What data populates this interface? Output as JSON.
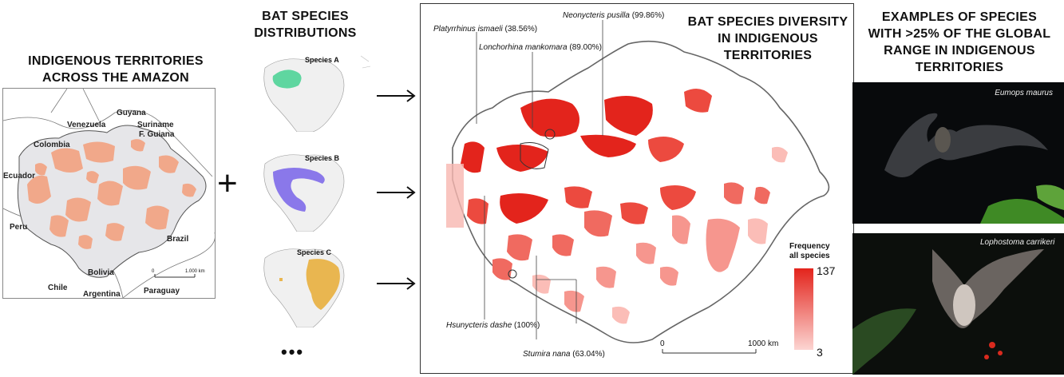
{
  "panel1": {
    "title_line1": "INDIGENOUS TERRITORIES",
    "title_line2": "ACROSS THE AMAZON",
    "countries": {
      "guyana": "Guyana",
      "venezuela": "Venezuela",
      "suriname": "Suriname",
      "f_guiana": "F. Guiana",
      "colombia": "Colombia",
      "ecuador": "Ecuador",
      "peru": "Peru",
      "brazil": "Brazil",
      "bolivia": "Bolivia",
      "chile": "Chile",
      "argentina": "Argentina",
      "paraguay": "Paraguay"
    },
    "scale_start": "0",
    "scale_end": "1.000 km",
    "colors": {
      "territory": "#f2a585",
      "amazon": "#e8e8ea",
      "border": "#555555"
    }
  },
  "plus": "+",
  "panel2": {
    "title_line1": "BAT SPECIES",
    "title_line2": "DISTRIBUTIONS",
    "species": [
      {
        "label": "Species A",
        "color": "#5fd6a0"
      },
      {
        "label": "Species B",
        "color": "#8a78ea"
      },
      {
        "label": "Species C",
        "color": "#e9b650"
      }
    ],
    "ellipsis": "•••"
  },
  "panel3": {
    "title_line1": "BAT SPECIES DIVERSITY",
    "title_line2": "IN INDIGENOUS",
    "title_line3": "TERRITORIES",
    "annotations": [
      {
        "name": "Neonycteris pusilla",
        "pct": "(99.86%)"
      },
      {
        "name": "Platyrrhinus ismaeli",
        "pct": "(38.56%)"
      },
      {
        "name": "Lonchorhina mankomara",
        "pct": "(89.00%)"
      },
      {
        "name": "Hsunycteris dashe",
        "pct": "(100%)"
      },
      {
        "name": "Stumira nana",
        "pct": "(63.04%)"
      }
    ],
    "legend": {
      "title_line1": "Frequency",
      "title_line2": "all species",
      "max": "137",
      "min": "3",
      "color_max": "#e3241c",
      "color_min": "#fcd5d2"
    },
    "scale_start": "0",
    "scale_end": "1000 km"
  },
  "panel4": {
    "title_line1": "EXAMPLES OF SPECIES",
    "title_line2": "WITH >25% OF THE GLOBAL",
    "title_line3": "RANGE IN INDIGENOUS",
    "title_line4": "TERRITORIES",
    "photos": [
      {
        "caption": "Eumops maurus"
      },
      {
        "caption": "Lophostoma carrikeri"
      }
    ]
  }
}
